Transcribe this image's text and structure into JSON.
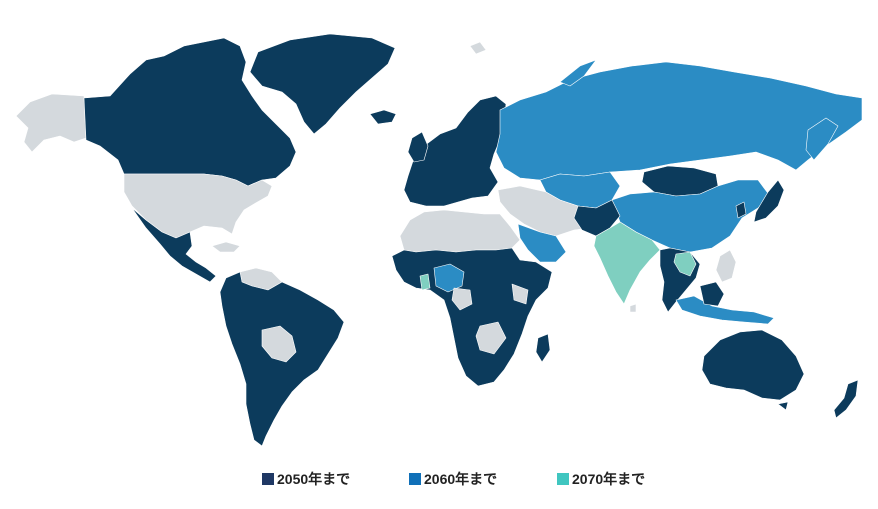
{
  "colors": {
    "by_2050": "#0c3b5c",
    "by_2060": "#2b8cc4",
    "by_2070": "#7fcfc0",
    "no_target": "#d4d9dd"
  },
  "legend": {
    "items": [
      {
        "key": "by_2050",
        "label": "2050年まで",
        "color": "#1f3864"
      },
      {
        "key": "by_2060",
        "label": "2060年まで",
        "color": "#1070b8"
      },
      {
        "key": "by_2070",
        "label": "2070年まで",
        "color": "#40c6c0"
      }
    ]
  }
}
